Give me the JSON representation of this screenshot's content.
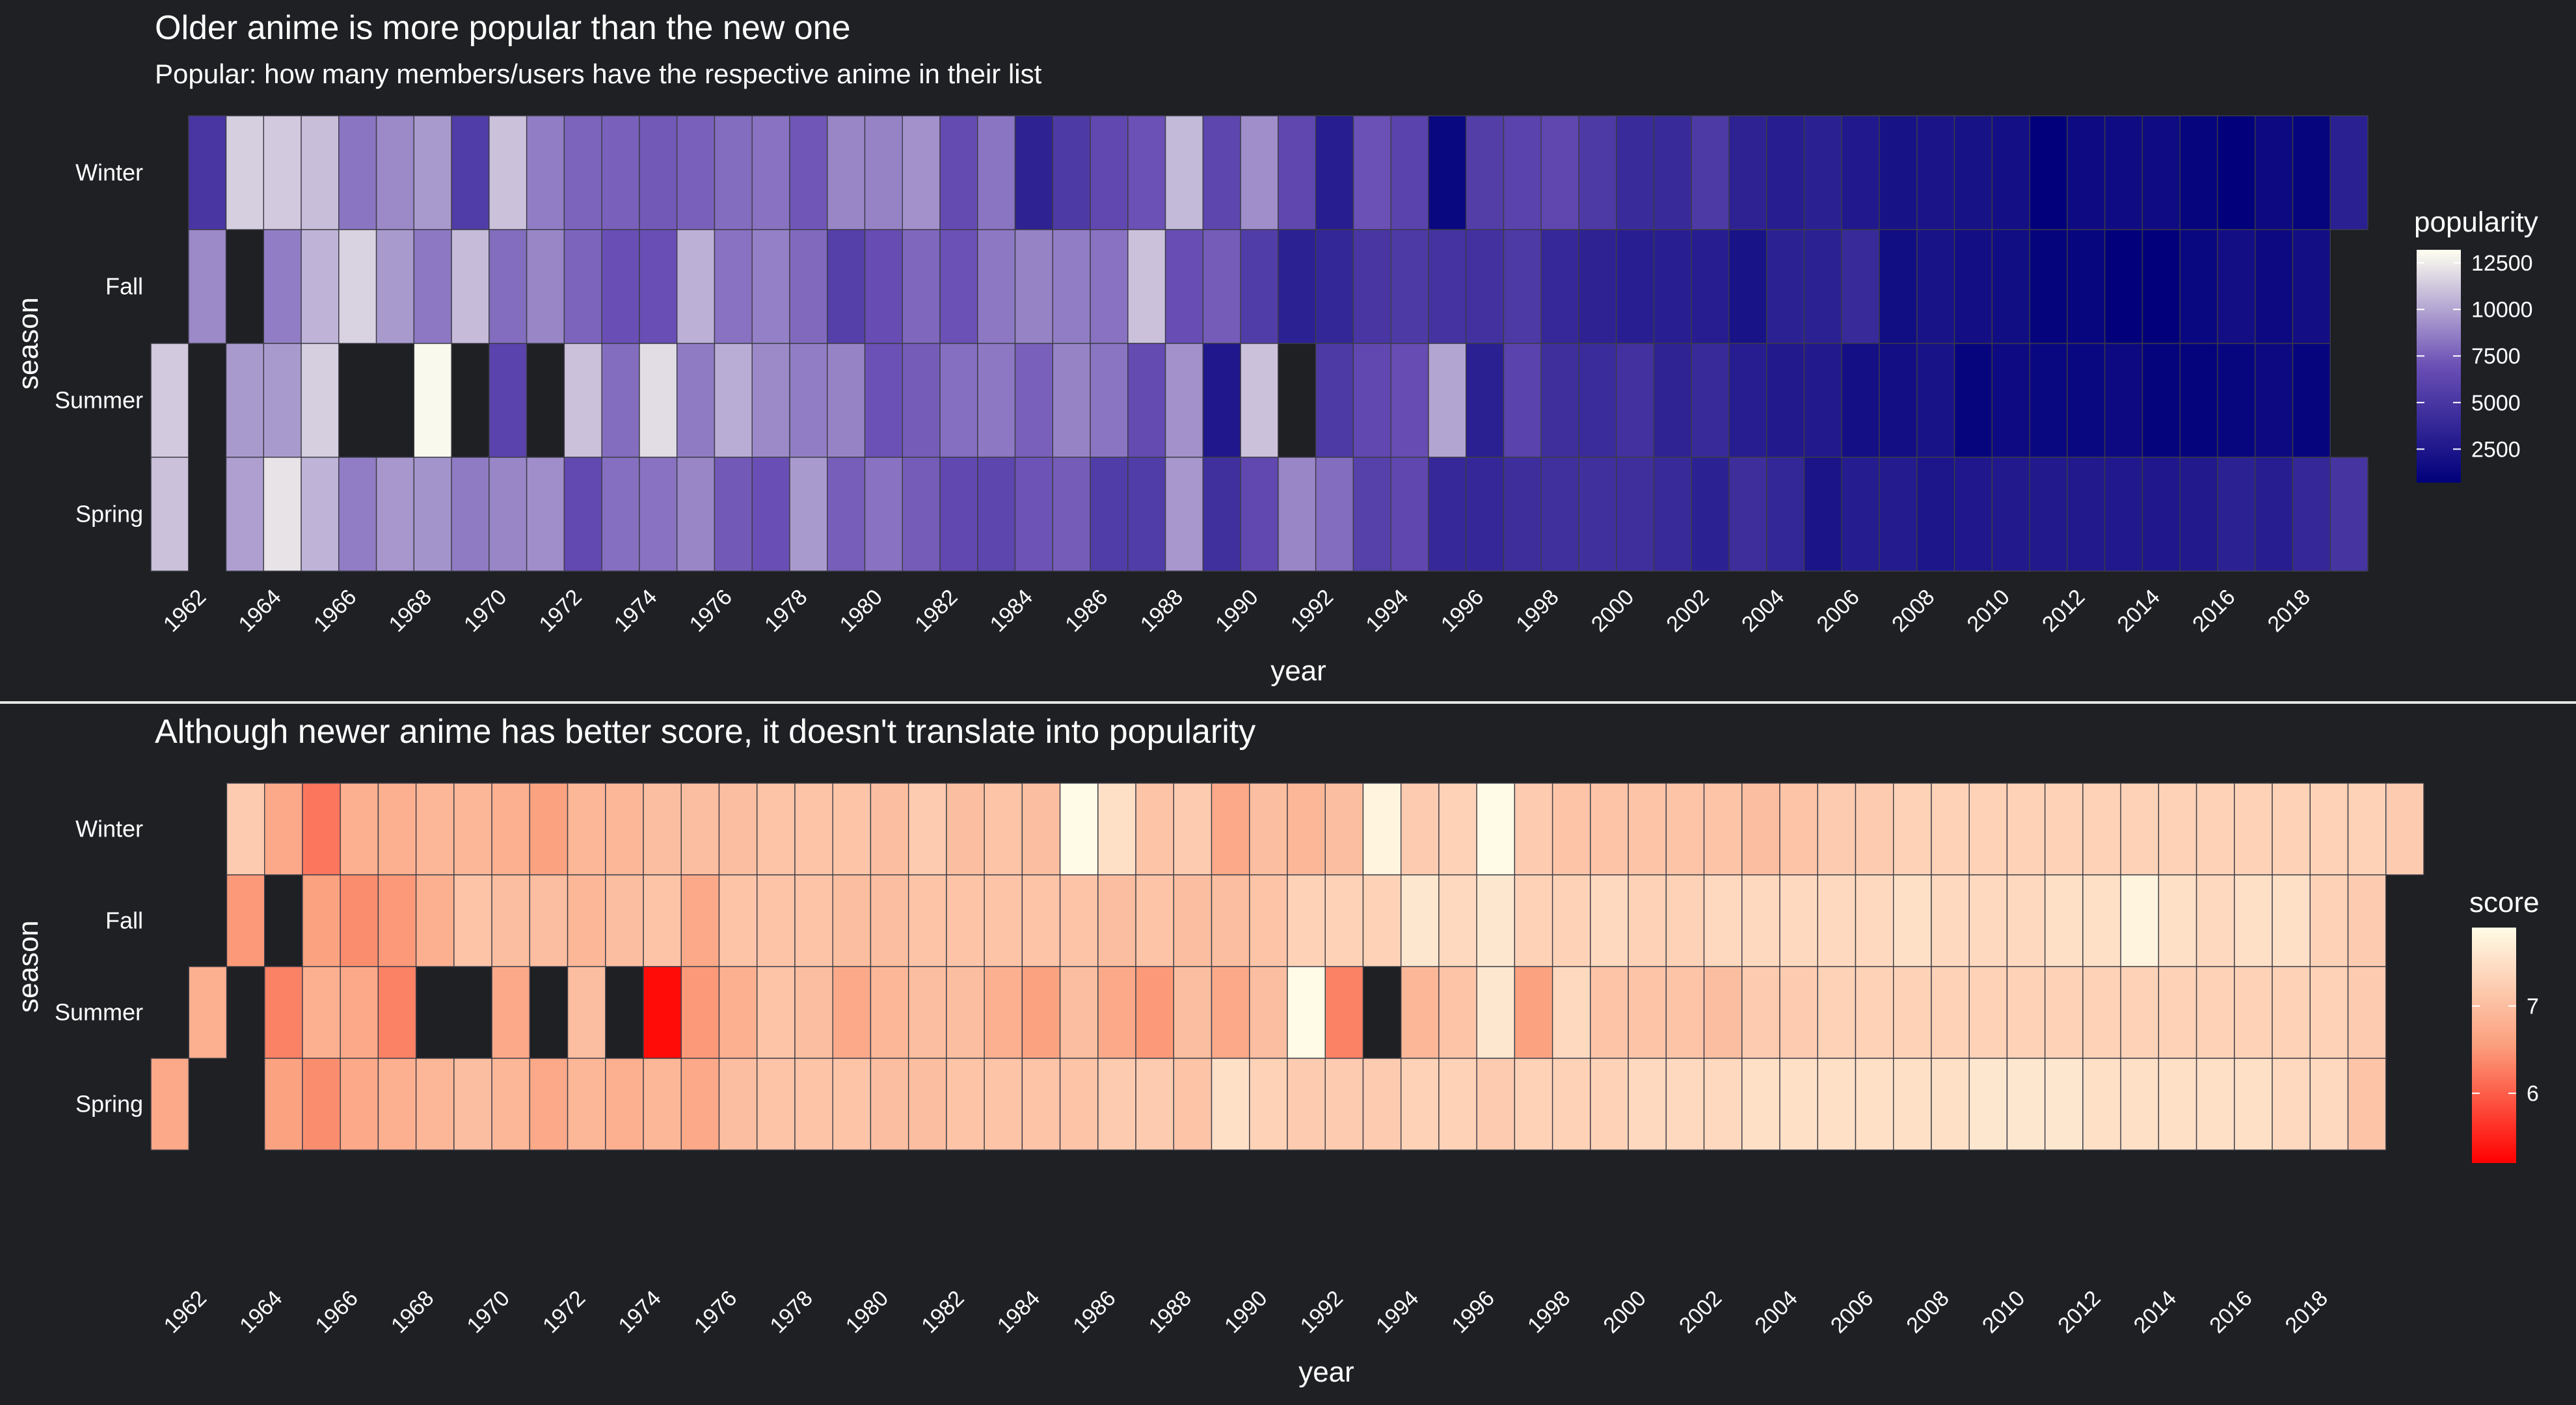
{
  "chart_data": [
    {
      "type": "heatmap",
      "title": "Older anime is more popular than the new one",
      "subtitle": "Popular: how many members/users have the respective anime in their list",
      "xlabel": "year",
      "ylabel": "season",
      "seasons": [
        "Winter",
        "Fall",
        "Summer",
        "Spring"
      ],
      "x_tick_labels": [
        "1962",
        "1964",
        "1966",
        "1968",
        "1970",
        "1972",
        "1974",
        "1976",
        "1978",
        "1980",
        "1982",
        "1984",
        "1986",
        "1988",
        "1990",
        "1992",
        "1994",
        "1996",
        "1998",
        "2000",
        "2002",
        "2004",
        "2006",
        "2008",
        "2010",
        "2012",
        "2014",
        "2016",
        "2018"
      ],
      "year_range": [
        1961,
        2019
      ],
      "legend": {
        "title": "popularity",
        "ticks": [
          2500,
          5000,
          7500,
          10000,
          12500
        ],
        "range": [
          700,
          13200
        ],
        "colors": [
          "#00007a",
          "#6a4fb5",
          "#fffff0"
        ]
      },
      "missing_color": "#1e2024",
      "values": {
        "Winter": [
          null,
          5000,
          11500,
          11300,
          10900,
          8300,
          9000,
          9600,
          5500,
          11000,
          8600,
          7700,
          7600,
          7300,
          7600,
          8000,
          8200,
          7200,
          8900,
          8800,
          9300,
          6600,
          8300,
          3400,
          5300,
          6400,
          7000,
          10700,
          6200,
          9200,
          6300,
          3000,
          7000,
          6000,
          1300,
          5600,
          6000,
          6300,
          5300,
          4100,
          4000,
          5300,
          3400,
          3000,
          3200,
          2600,
          2100,
          2300,
          2100,
          1900,
          800,
          1500,
          1600,
          1600,
          1100,
          800,
          1400,
          1100,
          3200
        ],
        "Fall": [
          null,
          9000,
          null,
          8600,
          10500,
          11600,
          9600,
          8400,
          10800,
          8000,
          8900,
          7700,
          6900,
          6900,
          10400,
          8200,
          8700,
          7900,
          5700,
          6700,
          7800,
          7000,
          8400,
          8800,
          8600,
          8200,
          11000,
          6800,
          7400,
          5500,
          3300,
          3700,
          5000,
          5300,
          4700,
          4600,
          5300,
          3900,
          3400,
          3100,
          3100,
          3000,
          2200,
          3300,
          3300,
          4000,
          1700,
          2200,
          1800,
          1700,
          1000,
          1200,
          800,
          800,
          1300,
          1800,
          1400,
          1800,
          null
        ],
        "Summer": [
          11300,
          null,
          9600,
          9600,
          11500,
          null,
          null,
          13000,
          null,
          6000,
          null,
          11000,
          8000,
          12000,
          8500,
          10300,
          9000,
          8600,
          8800,
          7000,
          7400,
          8100,
          8400,
          7600,
          8800,
          8300,
          6600,
          9300,
          2500,
          11000,
          null,
          5300,
          6400,
          6700,
          10000,
          3200,
          6000,
          4400,
          4200,
          4600,
          3500,
          4000,
          3000,
          2700,
          2700,
          1900,
          1800,
          2200,
          1100,
          1500,
          1300,
          1300,
          1400,
          1000,
          1000,
          1200,
          1400,
          1100,
          null
        ],
        "Spring": [
          11000,
          null,
          9800,
          12200,
          10500,
          8600,
          9500,
          9400,
          8500,
          8900,
          9200,
          6500,
          8100,
          8200,
          8900,
          7300,
          6900,
          9600,
          7500,
          8200,
          7400,
          6400,
          6200,
          7100,
          7400,
          5500,
          5500,
          9500,
          4500,
          6400,
          8900,
          8000,
          5800,
          6300,
          3900,
          3800,
          4300,
          4500,
          4500,
          4400,
          4000,
          3300,
          4300,
          3700,
          2300,
          2900,
          2800,
          2400,
          2500,
          2700,
          2700,
          2700,
          2600,
          2500,
          2700,
          3300,
          3000,
          3800,
          4800
        ]
      }
    },
    {
      "type": "heatmap",
      "title": "Although newer anime has better score, it doesn't translate into popularity",
      "xlabel": "year",
      "ylabel": "season",
      "seasons": [
        "Winter",
        "Fall",
        "Summer",
        "Spring"
      ],
      "x_tick_labels": [
        "1962",
        "1964",
        "1966",
        "1968",
        "1970",
        "1972",
        "1974",
        "1976",
        "1978",
        "1980",
        "1982",
        "1984",
        "1986",
        "1988",
        "1990",
        "1992",
        "1994",
        "1996",
        "1998",
        "2000",
        "2002",
        "2004",
        "2006",
        "2008",
        "2010",
        "2012",
        "2014",
        "2016",
        "2018"
      ],
      "year_range": [
        1961,
        2020
      ],
      "legend": {
        "title": "score",
        "ticks": [
          6,
          7
        ],
        "range": [
          5.2,
          7.9
        ],
        "colors": [
          "#ff0000",
          "#fb9f7d",
          "#fffbe6"
        ]
      },
      "missing_color": "#1e2024",
      "values": {
        "Winter": [
          null,
          null,
          7.2,
          6.7,
          6.2,
          6.8,
          6.8,
          6.9,
          6.9,
          6.8,
          6.6,
          6.9,
          6.9,
          7.0,
          7.0,
          7.0,
          7.1,
          7.1,
          7.1,
          7.0,
          7.2,
          7.0,
          7.1,
          7.0,
          7.9,
          7.5,
          7.1,
          7.2,
          6.7,
          7.0,
          6.9,
          7.0,
          7.8,
          7.2,
          7.3,
          7.9,
          7.2,
          7.1,
          7.1,
          7.1,
          7.1,
          7.1,
          7.0,
          7.1,
          7.2,
          7.2,
          7.3,
          7.3,
          7.3,
          7.3,
          7.3,
          7.3,
          7.3,
          7.3,
          7.3,
          7.3,
          7.3,
          7.3,
          7.3,
          7.2
        ],
        "Fall": [
          null,
          null,
          6.5,
          null,
          6.6,
          6.4,
          6.5,
          6.8,
          7.1,
          7.0,
          7.0,
          6.9,
          7.0,
          7.1,
          6.7,
          7.1,
          7.1,
          7.1,
          7.0,
          7.0,
          7.1,
          7.1,
          7.1,
          7.1,
          7.1,
          7.0,
          7.1,
          7.0,
          7.0,
          7.1,
          7.3,
          7.3,
          7.3,
          7.6,
          7.4,
          7.6,
          7.3,
          7.3,
          7.4,
          7.3,
          7.3,
          7.4,
          7.4,
          7.4,
          7.4,
          7.4,
          7.5,
          7.4,
          7.4,
          7.4,
          7.5,
          7.5,
          7.8,
          7.5,
          7.4,
          7.5,
          7.5,
          7.3,
          7.2,
          null
        ],
        "Summer": [
          null,
          6.8,
          null,
          6.3,
          6.8,
          6.7,
          6.3,
          null,
          null,
          6.7,
          null,
          7.0,
          null,
          5.3,
          6.5,
          6.8,
          7.1,
          7.0,
          6.7,
          6.9,
          7.0,
          7.0,
          6.8,
          6.6,
          7.0,
          6.7,
          6.5,
          7.0,
          6.7,
          7.0,
          7.9,
          6.3,
          null,
          6.9,
          7.1,
          7.6,
          6.6,
          7.4,
          7.1,
          7.1,
          7.1,
          7.0,
          7.2,
          7.2,
          7.3,
          7.3,
          7.3,
          7.3,
          7.3,
          7.3,
          7.3,
          7.3,
          7.3,
          7.3,
          7.3,
          7.3,
          7.3,
          7.3,
          7.2,
          null
        ],
        "Spring": [
          6.7,
          null,
          null,
          6.6,
          6.4,
          6.7,
          6.8,
          6.9,
          7.0,
          6.9,
          6.7,
          6.9,
          6.8,
          6.9,
          6.7,
          7.0,
          7.1,
          7.1,
          7.1,
          7.0,
          7.0,
          7.1,
          7.1,
          7.1,
          7.1,
          7.2,
          7.2,
          7.1,
          7.5,
          7.3,
          7.2,
          7.2,
          7.2,
          7.3,
          7.3,
          7.2,
          7.3,
          7.3,
          7.3,
          7.4,
          7.4,
          7.4,
          7.5,
          7.5,
          7.5,
          7.5,
          7.5,
          7.5,
          7.6,
          7.6,
          7.6,
          7.5,
          7.5,
          7.5,
          7.5,
          7.5,
          7.4,
          7.4,
          7.1,
          null
        ]
      }
    }
  ]
}
